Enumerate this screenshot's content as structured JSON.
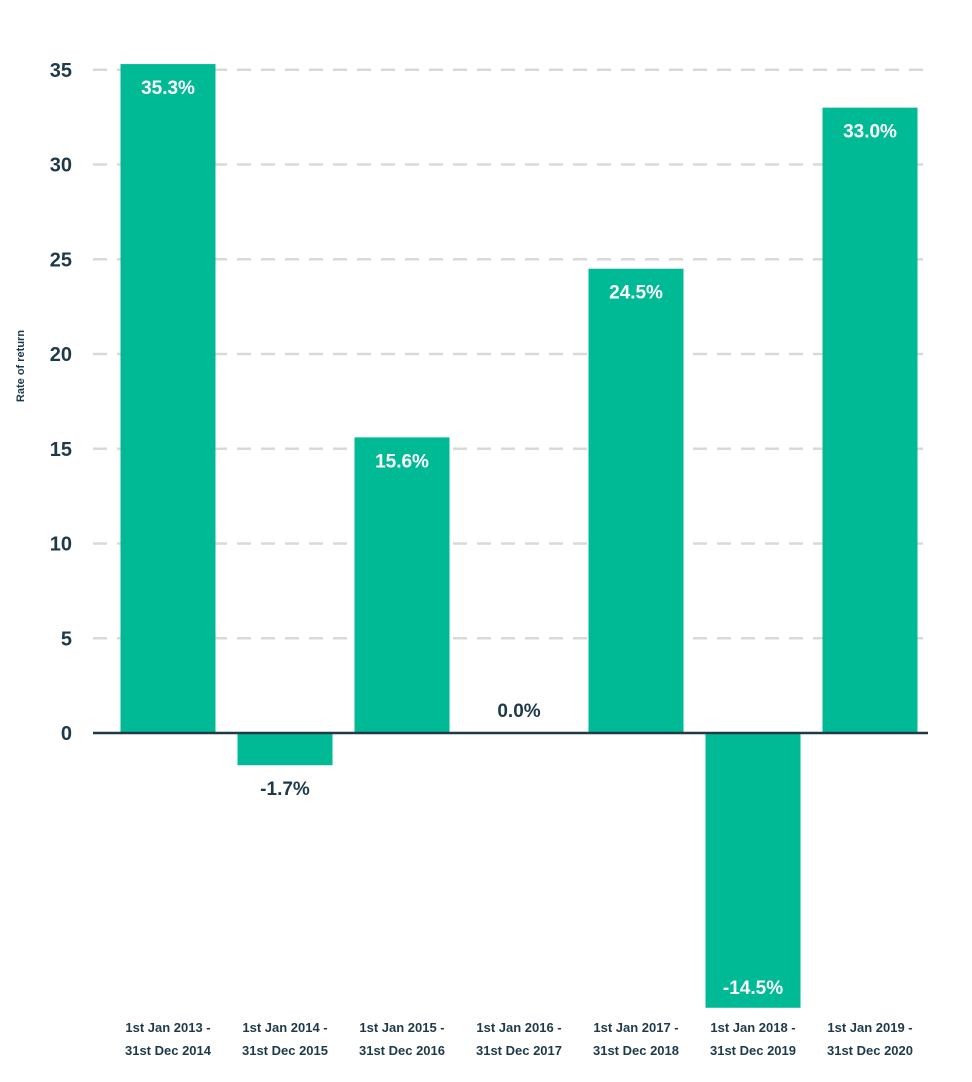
{
  "chart_data": {
    "type": "bar",
    "categories": [
      [
        "1st Jan 2013 -",
        "31st Dec 2014"
      ],
      [
        "1st Jan 2014 -",
        "31st Dec 2015"
      ],
      [
        "1st Jan 2015 -",
        "31st Dec 2016"
      ],
      [
        "1st Jan 2016 -",
        "31st Dec 2017"
      ],
      [
        "1st Jan 2017 -",
        "31st Dec 2018"
      ],
      [
        "1st Jan 2018 -",
        "31st Dec 2019"
      ],
      [
        "1st Jan 2019 -",
        "31st Dec 2020"
      ]
    ],
    "values": [
      35.3,
      -1.7,
      15.6,
      0.0,
      24.5,
      -14.5,
      33.0
    ],
    "data_labels": [
      "35.3%",
      "-1.7%",
      "15.6%",
      "0.0%",
      "24.5%",
      "-14.5%",
      "33.0%"
    ],
    "title": "",
    "xlabel": "",
    "ylabel": "Rate of return",
    "ylim": [
      -14.5,
      36
    ],
    "yticks": [
      0,
      5,
      10,
      15,
      20,
      25,
      30,
      35
    ],
    "grid": true,
    "grid_style": "dashed",
    "legend": "none",
    "colors": {
      "bar": "#00ba96",
      "label_inside": "#ffffff",
      "label_outside": "#1e3a4a",
      "axis": "#1e3a4a",
      "grid": "#d9d9d9"
    }
  }
}
